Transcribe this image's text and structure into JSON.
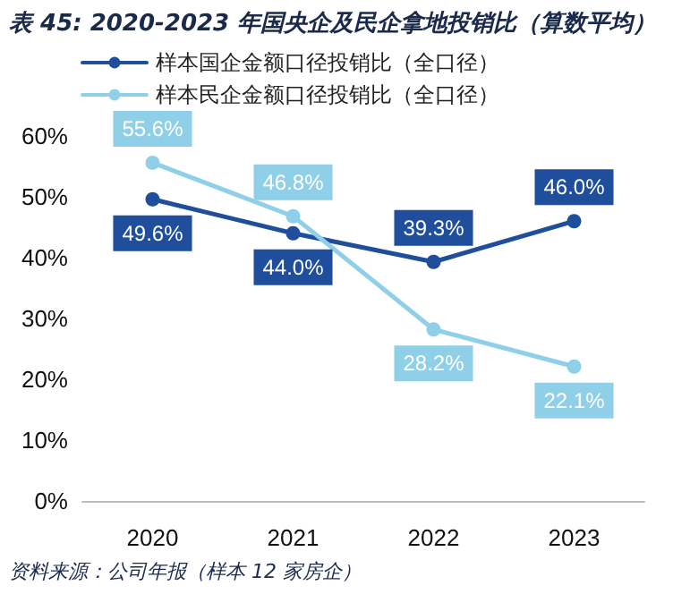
{
  "chart_data": {
    "type": "line",
    "title": "表 45: 2020-2023 年国央企及民企拿地投销比（算数平均）",
    "categories": [
      "2020",
      "2021",
      "2022",
      "2023"
    ],
    "series": [
      {
        "name": "样本国企金额口径投销比（全口径）",
        "color": "#1f4e9c",
        "values": [
          49.6,
          44.0,
          39.3,
          46.0
        ],
        "value_labels": [
          "49.6%",
          "44.0%",
          "39.3%",
          "46.0%"
        ]
      },
      {
        "name": "样本民企金额口径投销比（全口径）",
        "color": "#8fd0e8",
        "values": [
          55.6,
          46.8,
          28.2,
          22.1
        ],
        "value_labels": [
          "55.6%",
          "46.8%",
          "28.2%",
          "22.1%"
        ]
      }
    ],
    "ylim": [
      0,
      60
    ],
    "yticks": [
      {
        "value": 0,
        "label": "0%"
      },
      {
        "value": 10,
        "label": "10%"
      },
      {
        "value": 20,
        "label": "20%"
      },
      {
        "value": 30,
        "label": "30%"
      },
      {
        "value": 40,
        "label": "40%"
      },
      {
        "value": 50,
        "label": "50%"
      },
      {
        "value": 60,
        "label": "60%"
      }
    ],
    "grid": false,
    "legend": "top left",
    "marker": "circle",
    "line_style": "solid",
    "annotations": [
      "资料来源：公司年报（样本 12 家房企）"
    ]
  }
}
